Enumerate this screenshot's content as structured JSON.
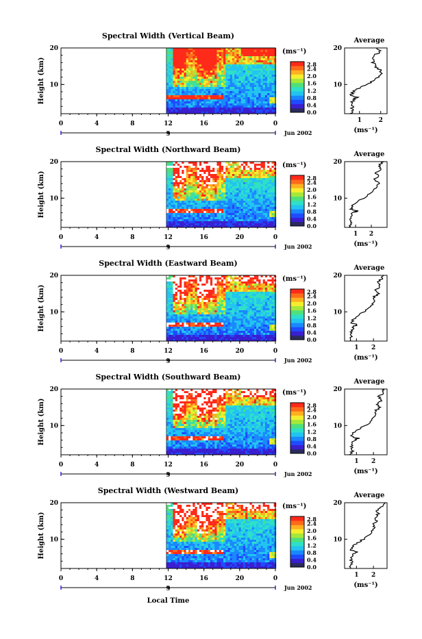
{
  "colors": {
    "scale": [
      "#2b2b5e",
      "#3a1fd0",
      "#1f4bff",
      "#1a88ff",
      "#22c4f0",
      "#2ee0c8",
      "#4fe07a",
      "#a6e83a",
      "#f4ee2e",
      "#ffb020",
      "#ff6a1a",
      "#ff2a1a"
    ],
    "white_sat": "#ffffff"
  },
  "shared": {
    "ylabel": "Height (km)",
    "colorbar_unit": "(ms⁻¹)",
    "colorbar_ticks": [
      "2.8",
      "2.4",
      "2.0",
      "1.6",
      "1.2",
      "0.8",
      "0.4",
      "0.0"
    ],
    "x_ticks": [
      "0",
      "4",
      "8",
      "12",
      "16",
      "20",
      "0"
    ],
    "date_label": "Jun 2002",
    "date_day": "9",
    "avg_title": "Average",
    "avg_xlabel": "(ms⁻¹)",
    "xlabel": "Local Time"
  },
  "chart_data": [
    {
      "type": "heatmap",
      "title": "Spectral Width (Vertical Beam)",
      "ylabel": "Height (km)",
      "xlim": [
        0,
        24
      ],
      "ylim": [
        2,
        20
      ],
      "clim": [
        0.0,
        2.8
      ],
      "x_ticks": [
        0,
        4,
        8,
        12,
        16,
        20,
        24
      ],
      "y_ticks": [
        10,
        20
      ],
      "data_start_hour": 11.8,
      "profile": {
        "title": "Average",
        "xlim": [
          0.3,
          2.3
        ],
        "x_ticks": [
          1,
          2
        ],
        "heights": [
          2,
          3,
          4,
          5,
          6,
          6.5,
          7,
          8,
          9,
          10,
          11,
          12,
          13,
          14,
          15,
          16,
          17,
          18,
          19,
          20
        ],
        "values": [
          0.55,
          0.7,
          0.65,
          0.6,
          0.75,
          0.9,
          0.6,
          0.7,
          0.95,
          1.3,
          1.7,
          1.9,
          2.1,
          1.95,
          1.75,
          1.65,
          1.6,
          1.7,
          2.0,
          1.8
        ]
      }
    },
    {
      "type": "heatmap",
      "title": "Spectral Width (Northward Beam)",
      "ylabel": "Height (km)",
      "xlim": [
        0,
        24
      ],
      "ylim": [
        2,
        20
      ],
      "clim": [
        0.0,
        2.8
      ],
      "x_ticks": [
        0,
        4,
        8,
        12,
        16,
        20,
        24
      ],
      "y_ticks": [
        10,
        20
      ],
      "data_start_hour": 11.8,
      "profile": {
        "title": "Average",
        "xlim": [
          0.3,
          3.0
        ],
        "x_ticks": [
          1,
          2
        ],
        "heights": [
          2,
          3,
          4,
          5,
          6,
          6.5,
          7,
          8,
          9,
          10,
          11,
          12,
          13,
          14,
          15,
          16,
          17,
          18,
          19,
          20
        ],
        "values": [
          0.6,
          0.75,
          0.7,
          0.65,
          0.85,
          1.1,
          0.7,
          0.8,
          1.1,
          1.5,
          1.8,
          2.1,
          2.3,
          2.5,
          2.2,
          2.4,
          2.3,
          2.6,
          2.5,
          2.8
        ]
      }
    },
    {
      "type": "heatmap",
      "title": "Spectral Width (Eastward Beam)",
      "ylabel": "Height (km)",
      "xlim": [
        0,
        24
      ],
      "ylim": [
        2,
        20
      ],
      "clim": [
        0.0,
        2.8
      ],
      "x_ticks": [
        0,
        4,
        8,
        12,
        16,
        20,
        24
      ],
      "y_ticks": [
        10,
        20
      ],
      "data_start_hour": 11.8,
      "profile": {
        "title": "Average",
        "xlim": [
          0.3,
          2.8
        ],
        "x_ticks": [
          1,
          2
        ],
        "heights": [
          2,
          3,
          4,
          5,
          6,
          6.5,
          7,
          8,
          9,
          10,
          11,
          12,
          13,
          14,
          15,
          16,
          17,
          18,
          19,
          20
        ],
        "values": [
          0.6,
          0.7,
          0.65,
          0.7,
          0.85,
          1.05,
          0.7,
          0.8,
          1.1,
          1.4,
          1.7,
          1.9,
          2.1,
          2.0,
          2.3,
          2.1,
          2.4,
          2.2,
          2.5,
          2.6
        ]
      }
    },
    {
      "type": "heatmap",
      "title": "Spectral Width (Southward Beam)",
      "ylabel": "Height (km)",
      "xlim": [
        0,
        24
      ],
      "ylim": [
        2,
        20
      ],
      "clim": [
        0.0,
        2.8
      ],
      "x_ticks": [
        0,
        4,
        8,
        12,
        16,
        20,
        24
      ],
      "y_ticks": [
        10,
        20
      ],
      "data_start_hour": 11.8,
      "profile": {
        "title": "Average",
        "xlim": [
          0.3,
          2.8
        ],
        "x_ticks": [
          1,
          2
        ],
        "heights": [
          2,
          3,
          4,
          5,
          6,
          6.5,
          7,
          8,
          9,
          10,
          11,
          12,
          13,
          14,
          15,
          16,
          17,
          18,
          19,
          20
        ],
        "values": [
          0.6,
          0.75,
          0.7,
          0.7,
          0.9,
          1.1,
          0.7,
          0.8,
          1.1,
          1.5,
          1.8,
          2.0,
          2.2,
          2.1,
          2.4,
          2.2,
          2.5,
          2.3,
          2.6,
          2.5
        ]
      }
    },
    {
      "type": "heatmap",
      "title": "Spectral Width (Westward Beam)",
      "ylabel": "Height (km)",
      "xlim": [
        0,
        24
      ],
      "ylim": [
        2,
        20
      ],
      "clim": [
        0.0,
        2.8
      ],
      "x_ticks": [
        0,
        4,
        8,
        12,
        16,
        20,
        24
      ],
      "y_ticks": [
        10,
        20
      ],
      "data_start_hour": 11.8,
      "profile": {
        "title": "Average",
        "xlim": [
          0.3,
          2.8
        ],
        "x_ticks": [
          1,
          2
        ],
        "heights": [
          2,
          3,
          4,
          5,
          6,
          6.5,
          7,
          8,
          9,
          10,
          11,
          12,
          13,
          14,
          15,
          16,
          17,
          18,
          19,
          20
        ],
        "values": [
          0.6,
          0.7,
          0.7,
          0.7,
          0.85,
          1.05,
          0.7,
          0.8,
          1.05,
          1.4,
          1.7,
          1.9,
          2.1,
          2.0,
          2.2,
          2.1,
          2.3,
          2.2,
          2.5,
          2.7
        ]
      }
    }
  ]
}
